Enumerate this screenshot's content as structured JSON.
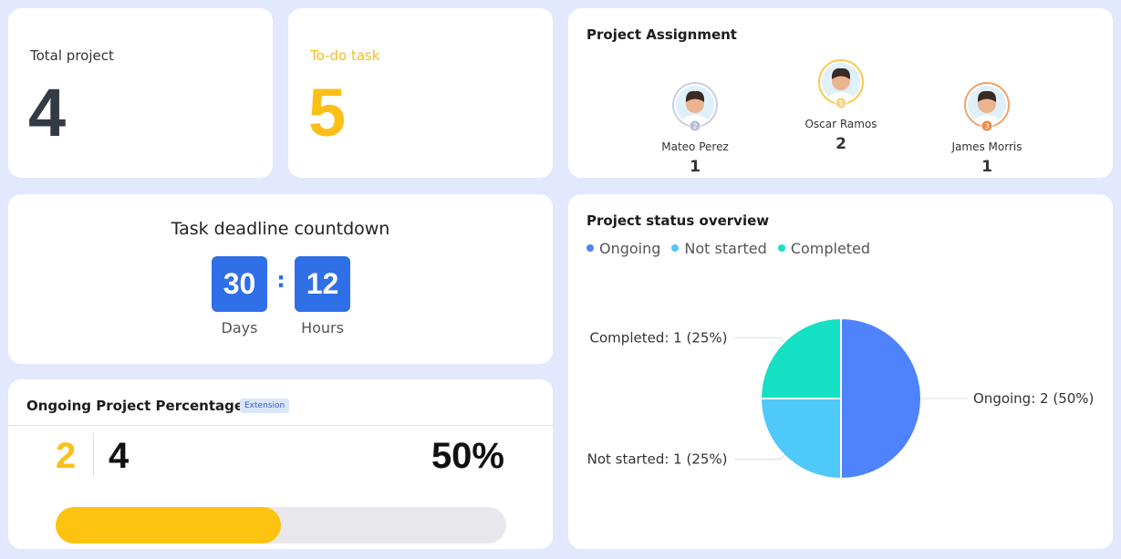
{
  "total_card": {
    "label": "Total project",
    "value": 4
  },
  "todo_card": {
    "label": "To-do task",
    "value": 5
  },
  "assignment": {
    "title": "Project Assignment",
    "people": [
      {
        "name": "Mateo Perez",
        "rank": 2,
        "count": 1
      },
      {
        "name": "Oscar Ramos",
        "rank": 1,
        "count": 2
      },
      {
        "name": "James Morris",
        "rank": 3,
        "count": 1
      }
    ]
  },
  "countdown": {
    "title": "Task deadline countdown",
    "days": 30,
    "days_label": "Days",
    "hours": 12,
    "hours_label": "Hours"
  },
  "ongoing": {
    "title": "Ongoing Project Percentage",
    "badge": "Extension",
    "done": 2,
    "total": 4,
    "percent_label": "50%"
  },
  "chart_data": {
    "type": "pie",
    "title": "Project status overview",
    "categories": [
      "Ongoing",
      "Not started",
      "Completed"
    ],
    "values": [
      2,
      1,
      1
    ],
    "value_labels": [
      "Ongoing: 2 (50%)",
      "Not started: 1 (25%)",
      "Completed: 1 (25%)"
    ],
    "colors": [
      "#4e83fd",
      "#4fc8fa",
      "#14e0c4"
    ],
    "legend": "top-left"
  }
}
